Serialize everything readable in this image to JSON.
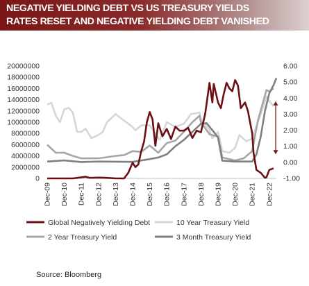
{
  "header": {
    "title_line1": "NEGATIVE YIELDING DEBT VS US TREASURY YIELDS",
    "title_line2": "RATES RESET AND NEGATIVE YIELDING DEBT VANISHED"
  },
  "source": "Source:  Bloomberg",
  "chart_data": {
    "type": "line",
    "title": "NEGATIVE YIELDING DEBT VS US TREASURY YIELDS RATES RESET AND NEGATIVE YIELDING DEBT VANISHED",
    "x_tick_labels": [
      "Dec-09",
      "Dec-10",
      "Dec-11",
      "Dec-12",
      "Dec-13",
      "Dec-14",
      "Dec-15",
      "Dec-16",
      "Dec-17",
      "Dec-18",
      "Dec-19",
      "Dec-20",
      "Dec-21",
      "Dec-22"
    ],
    "y_left": {
      "ticks": [
        "0",
        "2000000",
        "4000000",
        "6000000",
        "8000000",
        "10000000",
        "12000000",
        "14000000",
        "16000000",
        "18000000",
        "20000000"
      ],
      "min": 0,
      "max": 20000000
    },
    "y_right": {
      "ticks": [
        "-1.00",
        "0.00",
        "1.00",
        "2.00",
        "3.00",
        "4.00",
        "5.00",
        "6.00"
      ],
      "min": -1,
      "max": 6
    },
    "grid": false,
    "legend_position": "bottom",
    "annotation": "double-headed arrow spanning approximately 0.5 to 3.8 on the right axis near Dec-22",
    "colors": {
      "negative_debt": "#6b0f14",
      "ten_year": "#d6d6d6",
      "two_year": "#a6a6a6",
      "three_month": "#7f7f7f",
      "arrow": "#7a1a1a"
    },
    "series": [
      {
        "name": "Global Negatively Yielding Debt",
        "axis": "left",
        "points": [
          [
            "2009-12",
            0
          ],
          [
            "2010-12",
            0
          ],
          [
            "2011-06",
            0
          ],
          [
            "2011-12",
            200000
          ],
          [
            "2012-03",
            300000
          ],
          [
            "2012-06",
            100000
          ],
          [
            "2012-12",
            150000
          ],
          [
            "2013-06",
            100000
          ],
          [
            "2013-12",
            0
          ],
          [
            "2014-06",
            0
          ],
          [
            "2014-09",
            1000000
          ],
          [
            "2014-12",
            2800000
          ],
          [
            "2015-02",
            2000000
          ],
          [
            "2015-04",
            2500000
          ],
          [
            "2015-06",
            4800000
          ],
          [
            "2015-08",
            6500000
          ],
          [
            "2015-10",
            10000000
          ],
          [
            "2015-12",
            11800000
          ],
          [
            "2016-02",
            10500000
          ],
          [
            "2016-04",
            5800000
          ],
          [
            "2016-06",
            9800000
          ],
          [
            "2016-09",
            7500000
          ],
          [
            "2016-12",
            8800000
          ],
          [
            "2017-03",
            7000000
          ],
          [
            "2017-06",
            9200000
          ],
          [
            "2017-09",
            8500000
          ],
          [
            "2017-12",
            8500000
          ],
          [
            "2018-03",
            9000000
          ],
          [
            "2018-06",
            7200000
          ],
          [
            "2018-09",
            8500000
          ],
          [
            "2018-12",
            8200000
          ],
          [
            "2019-03",
            11500000
          ],
          [
            "2019-06",
            17000000
          ],
          [
            "2019-08",
            13500000
          ],
          [
            "2019-09",
            16800000
          ],
          [
            "2019-12",
            13500000
          ],
          [
            "2020-02",
            12500000
          ],
          [
            "2020-04",
            15000000
          ],
          [
            "2020-06",
            17000000
          ],
          [
            "2020-08",
            16000000
          ],
          [
            "2020-10",
            15500000
          ],
          [
            "2020-12",
            17500000
          ],
          [
            "2021-02",
            16500000
          ],
          [
            "2021-04",
            12500000
          ],
          [
            "2021-07",
            13500000
          ],
          [
            "2021-09",
            12000000
          ],
          [
            "2021-12",
            8000000
          ],
          [
            "2022-01",
            4500000
          ],
          [
            "2022-03",
            1500000
          ],
          [
            "2022-06",
            1000000
          ],
          [
            "2022-09",
            100000
          ],
          [
            "2022-10",
            200000
          ],
          [
            "2022-12",
            1500000
          ],
          [
            "2023-03",
            1800000
          ]
        ]
      },
      {
        "name": "10 Year Treasury Yield",
        "axis": "right",
        "points": [
          [
            "2009-12",
            3.6
          ],
          [
            "2010-03",
            3.7
          ],
          [
            "2010-06",
            2.9
          ],
          [
            "2010-09",
            2.5
          ],
          [
            "2010-12",
            3.3
          ],
          [
            "2011-03",
            3.4
          ],
          [
            "2011-06",
            3.1
          ],
          [
            "2011-09",
            1.9
          ],
          [
            "2011-12",
            1.9
          ],
          [
            "2012-03",
            2.1
          ],
          [
            "2012-07",
            1.5
          ],
          [
            "2012-12",
            1.7
          ],
          [
            "2013-03",
            1.9
          ],
          [
            "2013-06",
            2.5
          ],
          [
            "2013-12",
            3.0
          ],
          [
            "2014-06",
            2.6
          ],
          [
            "2014-12",
            2.2
          ],
          [
            "2015-02",
            2.0
          ],
          [
            "2015-06",
            2.3
          ],
          [
            "2015-12",
            2.3
          ],
          [
            "2016-07",
            1.4
          ],
          [
            "2016-12",
            2.5
          ],
          [
            "2017-06",
            2.2
          ],
          [
            "2017-12",
            2.4
          ],
          [
            "2018-05",
            3.0
          ],
          [
            "2018-11",
            3.1
          ],
          [
            "2018-12",
            2.7
          ],
          [
            "2019-06",
            2.0
          ],
          [
            "2019-08",
            1.5
          ],
          [
            "2019-12",
            1.9
          ],
          [
            "2020-03",
            0.7
          ],
          [
            "2020-08",
            0.6
          ],
          [
            "2020-12",
            0.9
          ],
          [
            "2021-03",
            1.7
          ],
          [
            "2021-08",
            1.3
          ],
          [
            "2021-12",
            1.5
          ],
          [
            "2022-06",
            3.0
          ],
          [
            "2022-10",
            4.1
          ],
          [
            "2022-12",
            3.8
          ],
          [
            "2023-03",
            3.5
          ]
        ]
      },
      {
        "name": "2 Year Treasury Yield",
        "axis": "right",
        "points": [
          [
            "2009-12",
            1.1
          ],
          [
            "2010-06",
            0.6
          ],
          [
            "2010-12",
            0.6
          ],
          [
            "2011-06",
            0.4
          ],
          [
            "2011-12",
            0.25
          ],
          [
            "2012-12",
            0.25
          ],
          [
            "2013-12",
            0.4
          ],
          [
            "2014-06",
            0.45
          ],
          [
            "2014-12",
            0.7
          ],
          [
            "2015-06",
            0.65
          ],
          [
            "2015-12",
            1.05
          ],
          [
            "2016-06",
            0.6
          ],
          [
            "2016-12",
            1.2
          ],
          [
            "2017-06",
            1.35
          ],
          [
            "2017-12",
            1.9
          ],
          [
            "2018-06",
            2.5
          ],
          [
            "2018-11",
            2.9
          ],
          [
            "2018-12",
            2.5
          ],
          [
            "2019-06",
            1.75
          ],
          [
            "2019-12",
            1.6
          ],
          [
            "2020-03",
            0.3
          ],
          [
            "2020-12",
            0.12
          ],
          [
            "2021-06",
            0.25
          ],
          [
            "2021-12",
            0.7
          ],
          [
            "2022-04",
            2.6
          ],
          [
            "2022-10",
            4.5
          ],
          [
            "2022-12",
            4.4
          ],
          [
            "2023-03",
            4.6
          ]
        ]
      },
      {
        "name": "3 Month Treasury Yield",
        "axis": "right",
        "points": [
          [
            "2009-12",
            0.05
          ],
          [
            "2010-12",
            0.12
          ],
          [
            "2011-12",
            0.02
          ],
          [
            "2012-12",
            0.05
          ],
          [
            "2013-12",
            0.04
          ],
          [
            "2014-12",
            0.03
          ],
          [
            "2015-12",
            0.2
          ],
          [
            "2016-06",
            0.3
          ],
          [
            "2016-12",
            0.5
          ],
          [
            "2017-06",
            1.0
          ],
          [
            "2017-12",
            1.4
          ],
          [
            "2018-06",
            1.9
          ],
          [
            "2018-12",
            2.4
          ],
          [
            "2019-04",
            2.44
          ],
          [
            "2019-09",
            1.9
          ],
          [
            "2019-12",
            1.55
          ],
          [
            "2020-03",
            0.1
          ],
          [
            "2020-12",
            0.05
          ],
          [
            "2021-12",
            0.05
          ],
          [
            "2022-03",
            0.5
          ],
          [
            "2022-06",
            1.6
          ],
          [
            "2022-09",
            3.2
          ],
          [
            "2022-12",
            4.3
          ],
          [
            "2023-03",
            4.8
          ],
          [
            "2023-05",
            5.25
          ]
        ]
      }
    ]
  }
}
